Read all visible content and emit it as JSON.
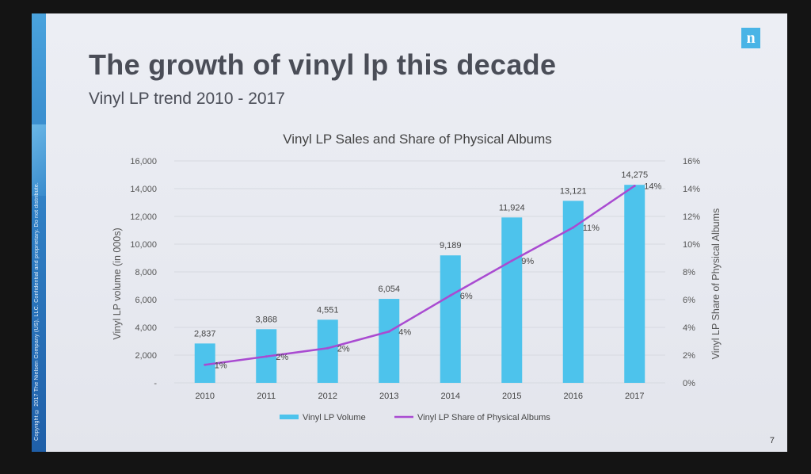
{
  "slide": {
    "title": "The growth of vinyl lp this decade",
    "subtitle": "Vinyl LP trend 2010 - 2017",
    "logo_letter": "n",
    "side_text": "Copyright © 2017 The Nielsen Company (US), LLC. Confidential and proprietary. Do not distribute.",
    "page_number": "7"
  },
  "colors": {
    "bar": "#4dc3ec",
    "line": "#a94bd1",
    "accent": "#49b4e6"
  },
  "chart_data": {
    "type": "bar",
    "title": "Vinyl LP Sales and Share of Physical Albums",
    "categories": [
      "2010",
      "2011",
      "2012",
      "2013",
      "2014",
      "2015",
      "2016",
      "2017"
    ],
    "series": [
      {
        "name": "Vinyl LP Volume",
        "type": "bar",
        "axis": "left",
        "values": [
          2837,
          3868,
          4551,
          6054,
          9189,
          11924,
          13121,
          14275
        ],
        "labels": [
          "2,837",
          "3,868",
          "4,551",
          "6,054",
          "9,189",
          "11,924",
          "13,121",
          "14,275"
        ]
      },
      {
        "name": "Vinyl LP Share of Physical Albums",
        "type": "line",
        "axis": "right",
        "values": [
          1.3,
          1.9,
          2.5,
          3.7,
          6.3,
          8.8,
          11.2,
          14.2
        ],
        "labels": [
          "1%",
          "2%",
          "2%",
          "4%",
          "6%",
          "9%",
          "11%",
          "14%"
        ]
      }
    ],
    "ylabel": "Vinyl LP volume (in 000s)",
    "y2label": "Vinyl LP Share of Physical Albums",
    "ylim": [
      0,
      16000
    ],
    "y2lim": [
      0,
      16
    ],
    "yticks": [
      "-",
      "2,000",
      "4,000",
      "6,000",
      "8,000",
      "10,000",
      "12,000",
      "14,000",
      "16,000"
    ],
    "y2ticks": [
      "0%",
      "2%",
      "4%",
      "6%",
      "8%",
      "10%",
      "12%",
      "14%",
      "16%"
    ],
    "grid": true,
    "legend": "bottom"
  }
}
